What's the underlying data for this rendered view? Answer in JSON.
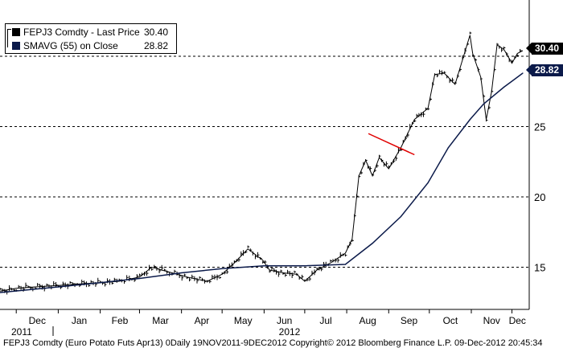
{
  "legend": {
    "price_label": "FEPJ3 Comdty - Last Price",
    "price_value": "30.40",
    "sma_label": "SMAVG (55) on Close",
    "sma_value": "28.82"
  },
  "tags": {
    "last": "30.40",
    "sma": "28.82"
  },
  "footer": "FEPJ3 Comdty (Euro Potato Futs Apr13) 0Daily 19NOV2011-9DEC2012 Copyright© 2012 Bloomberg Finance L.P. 09-Dec-2012 20:45:34",
  "colors": {
    "price": "#000000",
    "sma": "#0b1a4a",
    "trendline": "#e00000",
    "grid": "#000000"
  },
  "chart_data": {
    "type": "line",
    "title": "",
    "xlabel": "",
    "ylabel": "",
    "ylim": [
      12,
      34
    ],
    "y_ticks": [
      15,
      20,
      25
    ],
    "grid": true,
    "legend_position": "top-left",
    "x_tick_labels": [
      "Dec",
      "Jan",
      "Feb",
      "Mar",
      "Apr",
      "May",
      "Jun",
      "Jul",
      "Aug",
      "Sep",
      "Oct",
      "Nov",
      "Dec"
    ],
    "year_labels": [
      "2011",
      "2012"
    ],
    "x_start": "2011-11-19",
    "x_end": "2012-12-09",
    "series": [
      {
        "name": "FEPJ3 Comdty - Last Price",
        "style": "bar-ohlc",
        "x": [
          "2011-11-19",
          "2011-12-01",
          "2011-12-15",
          "2012-01-01",
          "2012-01-15",
          "2012-02-01",
          "2012-02-15",
          "2012-03-01",
          "2012-03-10",
          "2012-03-25",
          "2012-04-05",
          "2012-04-20",
          "2012-05-01",
          "2012-05-10",
          "2012-05-20",
          "2012-05-31",
          "2012-06-05",
          "2012-06-15",
          "2012-06-25",
          "2012-07-01",
          "2012-07-10",
          "2012-07-20",
          "2012-07-31",
          "2012-08-05",
          "2012-08-10",
          "2012-08-15",
          "2012-08-20",
          "2012-08-25",
          "2012-09-01",
          "2012-09-10",
          "2012-09-20",
          "2012-09-30",
          "2012-10-05",
          "2012-10-12",
          "2012-10-20",
          "2012-10-31",
          "2012-11-02",
          "2012-11-08",
          "2012-11-12",
          "2012-11-16",
          "2012-11-20",
          "2012-11-25",
          "2012-12-01",
          "2012-12-05",
          "2012-12-09"
        ],
        "values": [
          13.3,
          13.5,
          13.6,
          13.7,
          13.8,
          13.9,
          14.0,
          14.3,
          15.0,
          14.6,
          14.3,
          14.0,
          14.5,
          15.3,
          16.3,
          15.5,
          14.8,
          14.6,
          14.5,
          14.0,
          14.8,
          15.3,
          16.0,
          17.0,
          21.5,
          22.6,
          21.5,
          22.8,
          22.0,
          23.5,
          25.5,
          26.3,
          28.7,
          28.8,
          28.0,
          31.5,
          30.2,
          28.5,
          25.5,
          27.5,
          30.8,
          30.5,
          29.5,
          30.2,
          30.4
        ]
      },
      {
        "name": "SMAVG (55) on Close",
        "style": "line",
        "x": [
          "2011-11-19",
          "2012-01-01",
          "2012-02-01",
          "2012-03-01",
          "2012-04-01",
          "2012-05-01",
          "2012-06-01",
          "2012-07-01",
          "2012-07-31",
          "2012-08-20",
          "2012-09-10",
          "2012-09-30",
          "2012-10-15",
          "2012-10-31",
          "2012-11-10",
          "2012-11-25",
          "2012-12-09"
        ],
        "values": [
          13.2,
          13.6,
          13.9,
          14.2,
          14.6,
          14.9,
          15.1,
          15.1,
          15.2,
          16.7,
          18.6,
          21.0,
          23.5,
          25.5,
          26.6,
          27.8,
          28.8
        ]
      }
    ],
    "annotations": [
      {
        "type": "trendline",
        "from": [
          "2012-08-17",
          24.5
        ],
        "to": [
          "2012-09-20",
          23.0
        ]
      }
    ]
  }
}
